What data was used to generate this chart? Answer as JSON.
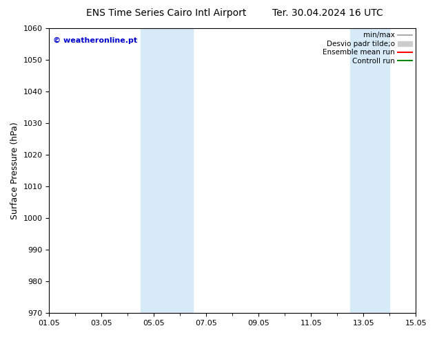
{
  "title_left": "ENS Time Series Cairo Intl Airport",
  "title_right": "Ter. 30.04.2024 16 UTC",
  "ylabel": "Surface Pressure (hPa)",
  "ylim": [
    970,
    1060
  ],
  "yticks": [
    970,
    980,
    990,
    1000,
    1010,
    1020,
    1030,
    1040,
    1050,
    1060
  ],
  "xtick_labels": [
    "01.05",
    "03.05",
    "05.05",
    "07.05",
    "09.05",
    "11.05",
    "13.05",
    "15.05"
  ],
  "xtick_positions": [
    0,
    2,
    4,
    6,
    8,
    10,
    12,
    14
  ],
  "xlim": [
    0,
    14
  ],
  "shaded_bands": [
    {
      "x_start": 3.5,
      "x_end": 4.0,
      "color": "#d6eaf8"
    },
    {
      "x_start": 4.0,
      "x_end": 5.5,
      "color": "#d6eaf8"
    },
    {
      "x_start": 11.5,
      "x_end": 12.0,
      "color": "#d6eaf8"
    },
    {
      "x_start": 12.0,
      "x_end": 13.0,
      "color": "#d6eaf8"
    }
  ],
  "watermark_text": "© weatheronline.pt",
  "watermark_color": "#0000cc",
  "legend_items": [
    {
      "label": "min/max",
      "color": "#999999",
      "lw": 1.2,
      "type": "line"
    },
    {
      "label": "Desvio padr tilde;o",
      "color": "#cccccc",
      "lw": 8,
      "type": "patch"
    },
    {
      "label": "Ensemble mean run",
      "color": "#ff0000",
      "lw": 1.5,
      "type": "line"
    },
    {
      "label": "Controll run",
      "color": "#008800",
      "lw": 1.5,
      "type": "line"
    }
  ],
  "bg_color": "#ffffff",
  "plot_bg_color": "#ffffff",
  "title_fontsize": 10,
  "tick_fontsize": 8,
  "label_fontsize": 9,
  "legend_fontsize": 7.5
}
